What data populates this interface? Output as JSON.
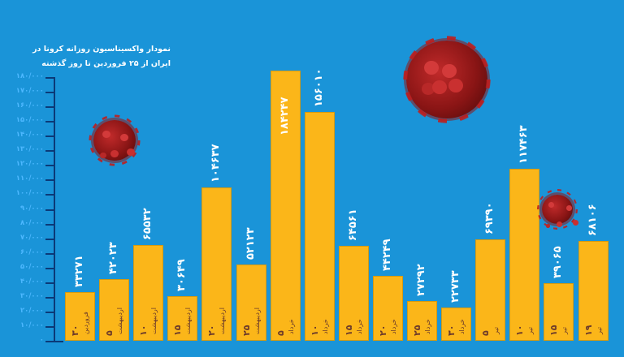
{
  "title": {
    "line1": "نمودار واکسیناسیون روزانه کرونا در",
    "line2": "ایران از ۲۵ فروردین تا روز گذشته"
  },
  "colors": {
    "background": "#1a94d8",
    "bar": "#fbb619",
    "axis": "#0b3a78",
    "tick_label": "#4db8ff",
    "value_label": "#ffffff",
    "date_label": "#6b3a2a"
  },
  "yaxis": {
    "ticks": [
      "۱۸۰/۰۰۰",
      "۱۷۰/۰۰۰",
      "۱۶۰/۰۰۰",
      "۱۵۰/۰۰۰",
      "۱۴۰/۰۰۰",
      "۱۳۰/۰۰۰",
      "۱۲۰/۰۰۰",
      "۱۱۰/۰۰۰",
      "۱۰۰/۰۰۰",
      "۹۰/۰۰۰",
      "۸۰/۰۰۰",
      "۷۰/۰۰۰",
      "۶۰/۰۰۰",
      "۵۰/۰۰۰",
      "۴۰/۰۰۰",
      "۳۰/۰۰۰",
      "۲۰/۰۰۰",
      "۱۰/۰۰۰",
      "۰"
    ]
  },
  "bars": [
    {
      "value_label": "۳۳۲۷۱",
      "day": "۳۰",
      "month": "فروردین"
    },
    {
      "value_label": "۴۲۰۲۳",
      "day": "۵",
      "month": "اردیبهشت"
    },
    {
      "value_label": "۶۵۵۳۲",
      "day": "۱۰",
      "month": "اردیبهشت"
    },
    {
      "value_label": "۳۰۶۴۹",
      "day": "۱۵",
      "month": "اردیبهشت"
    },
    {
      "value_label": "۱۰۴۶۳۷",
      "day": "۲۰",
      "month": "اردیبهشت"
    },
    {
      "value_label": "۵۲۱۲۳",
      "day": "۲۵",
      "month": "اردیبهشت"
    },
    {
      "value_label": "۱۸۴۲۴۷",
      "day": "۵",
      "month": "خرداد"
    },
    {
      "value_label": "۱۵۶۰۱۰",
      "day": "۱۰",
      "month": "خرداد"
    },
    {
      "value_label": "۶۴۵۶۱",
      "day": "۱۵",
      "month": "خرداد"
    },
    {
      "value_label": "۴۴۲۴۹",
      "day": "۲۰",
      "month": "خرداد"
    },
    {
      "value_label": "۲۷۲۹۲",
      "day": "۲۵",
      "month": "خرداد"
    },
    {
      "value_label": "۲۲۷۳۳",
      "day": "۳۰",
      "month": "خرداد"
    },
    {
      "value_label": "۶۹۳۹۰",
      "day": "۵",
      "month": "تیر"
    },
    {
      "value_label": "۱۱۷۴۶۳",
      "day": "۱۰",
      "month": "تیر"
    },
    {
      "value_label": "۳۹۰۶۵",
      "day": "۱۵",
      "month": "تیر"
    },
    {
      "value_label": "۶۸۱۰۶",
      "day": "۱۹",
      "month": "تیر"
    }
  ],
  "chart_data": {
    "type": "bar",
    "title": "نمودار واکسیناسیون روزانه کرونا در ایران از ۲۵ فروردین تا روز گذشته",
    "xlabel": "",
    "ylabel": "",
    "ylim": [
      0,
      180000
    ],
    "yticks": [
      0,
      10000,
      20000,
      30000,
      40000,
      50000,
      60000,
      70000,
      80000,
      90000,
      100000,
      110000,
      120000,
      130000,
      140000,
      150000,
      160000,
      170000,
      180000
    ],
    "grid": false,
    "legend": null,
    "categories": [
      "۳۰ فروردین",
      "۵ اردیبهشت",
      "۱۰ اردیبهشت",
      "۱۵ اردیبهشت",
      "۲۰ اردیبهشت",
      "۲۵ اردیبهشت",
      "۵ خرداد",
      "۱۰ خرداد",
      "۱۵ خرداد",
      "۲۰ خرداد",
      "۲۵ خرداد",
      "۳۰ خرداد",
      "۵ تیر",
      "۱۰ تیر",
      "۱۵ تیر",
      "۱۹ تیر"
    ],
    "values": [
      33271,
      42023,
      65532,
      30649,
      104637,
      52123,
      184247,
      156010,
      64561,
      44249,
      27292,
      22733,
      69390,
      117463,
      39065,
      68106
    ]
  }
}
